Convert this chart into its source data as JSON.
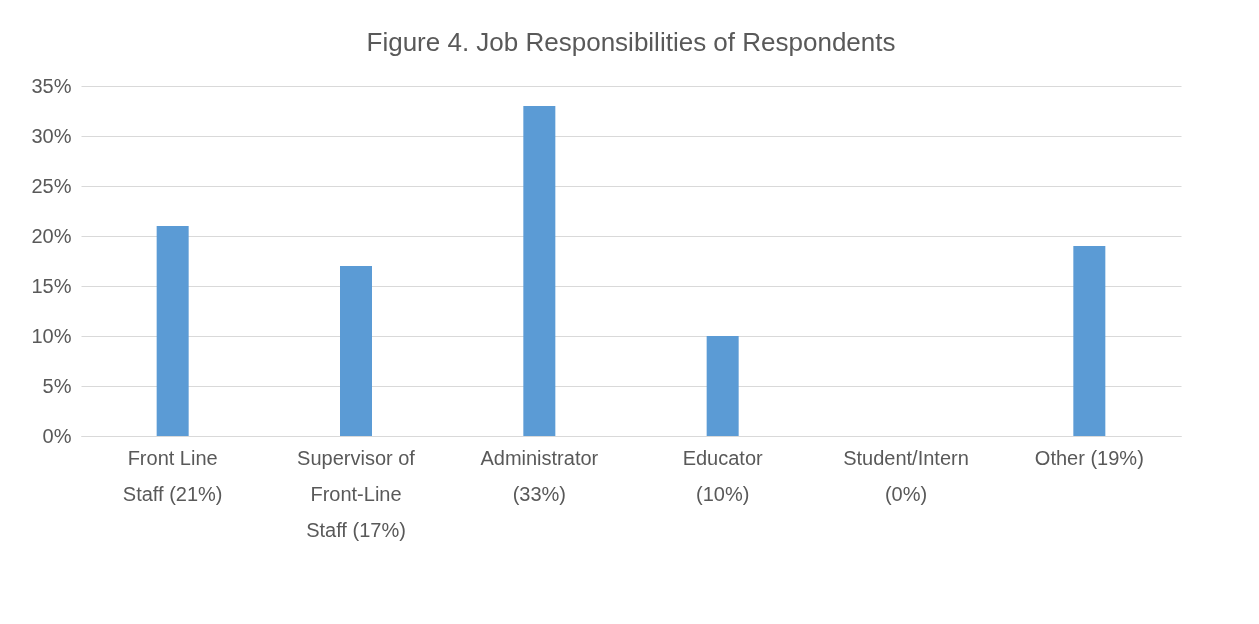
{
  "chart_data": {
    "type": "bar",
    "title": "Figure 4. Job Responsibilities of Respondents",
    "categories": [
      "Front Line Staff (21%)",
      "Supervisor of Front-Line Staff (17%)",
      "Administrator (33%)",
      "Educator (10%)",
      "Student/Intern (0%)",
      "Other (19%)"
    ],
    "values": [
      21,
      17,
      33,
      10,
      0,
      19
    ],
    "color": "#5b9bd5",
    "ylim": [
      0,
      35
    ],
    "yticks": [
      {
        "value": 0,
        "label": "0%"
      },
      {
        "value": 5,
        "label": "5%"
      },
      {
        "value": 10,
        "label": "10%"
      },
      {
        "value": 15,
        "label": "15%"
      },
      {
        "value": 20,
        "label": "20%"
      },
      {
        "value": 25,
        "label": "25%"
      },
      {
        "value": 30,
        "label": "30%"
      },
      {
        "value": 35,
        "label": "35%"
      }
    ],
    "grid": "y"
  }
}
